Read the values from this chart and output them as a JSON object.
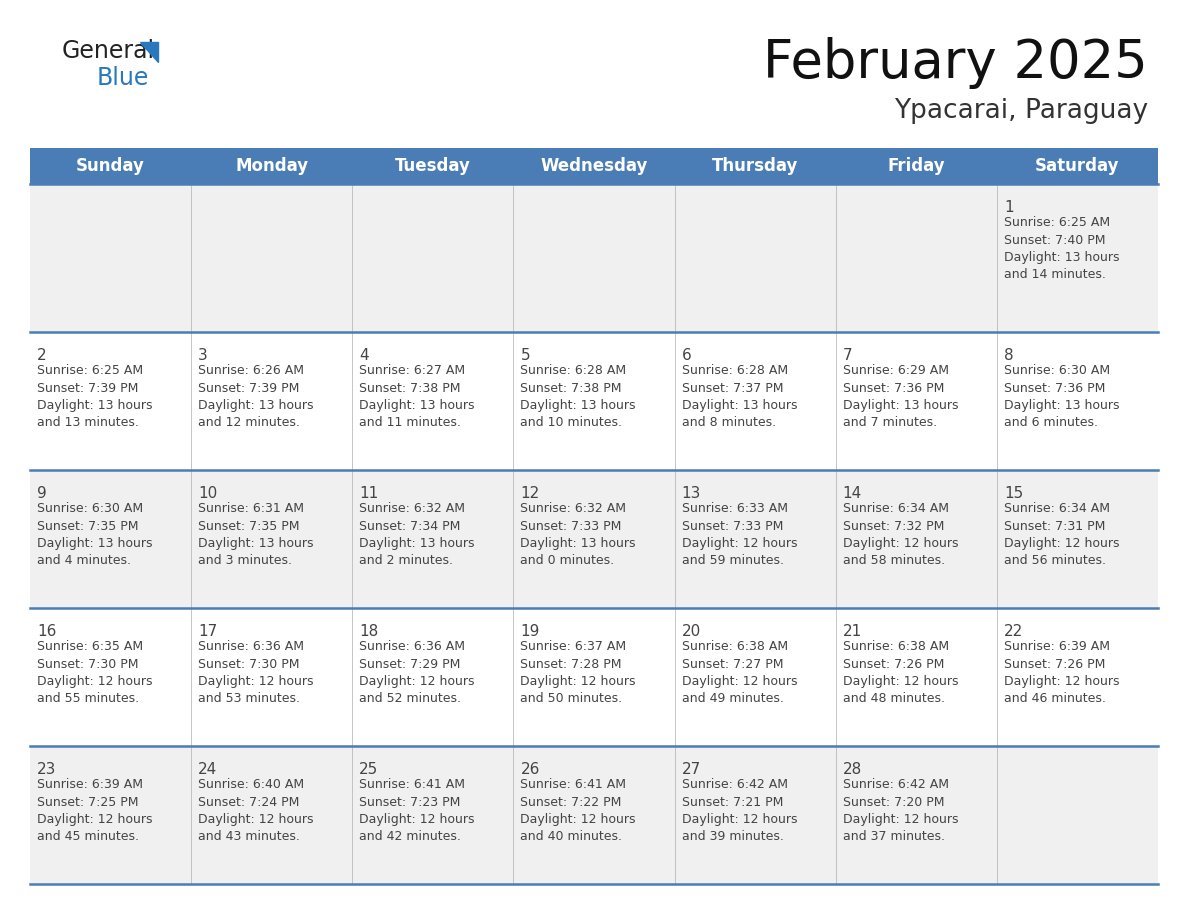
{
  "title": "February 2025",
  "subtitle": "Ypacarai, Paraguay",
  "days_of_week": [
    "Sunday",
    "Monday",
    "Tuesday",
    "Wednesday",
    "Thursday",
    "Friday",
    "Saturday"
  ],
  "header_bg": "#4A7DB5",
  "header_text": "#FFFFFF",
  "row_bg_odd": "#F0F0F0",
  "row_bg_even": "#FFFFFF",
  "separator_color": "#4A7DB5",
  "text_color": "#444444",
  "cell_data": [
    [
      null,
      null,
      null,
      null,
      null,
      null,
      {
        "day": "1",
        "sunrise": "6:25 AM",
        "sunset": "7:40 PM",
        "daylight": "13 hours\nand 14 minutes."
      }
    ],
    [
      {
        "day": "2",
        "sunrise": "6:25 AM",
        "sunset": "7:39 PM",
        "daylight": "13 hours\nand 13 minutes."
      },
      {
        "day": "3",
        "sunrise": "6:26 AM",
        "sunset": "7:39 PM",
        "daylight": "13 hours\nand 12 minutes."
      },
      {
        "day": "4",
        "sunrise": "6:27 AM",
        "sunset": "7:38 PM",
        "daylight": "13 hours\nand 11 minutes."
      },
      {
        "day": "5",
        "sunrise": "6:28 AM",
        "sunset": "7:38 PM",
        "daylight": "13 hours\nand 10 minutes."
      },
      {
        "day": "6",
        "sunrise": "6:28 AM",
        "sunset": "7:37 PM",
        "daylight": "13 hours\nand 8 minutes."
      },
      {
        "day": "7",
        "sunrise": "6:29 AM",
        "sunset": "7:36 PM",
        "daylight": "13 hours\nand 7 minutes."
      },
      {
        "day": "8",
        "sunrise": "6:30 AM",
        "sunset": "7:36 PM",
        "daylight": "13 hours\nand 6 minutes."
      }
    ],
    [
      {
        "day": "9",
        "sunrise": "6:30 AM",
        "sunset": "7:35 PM",
        "daylight": "13 hours\nand 4 minutes."
      },
      {
        "day": "10",
        "sunrise": "6:31 AM",
        "sunset": "7:35 PM",
        "daylight": "13 hours\nand 3 minutes."
      },
      {
        "day": "11",
        "sunrise": "6:32 AM",
        "sunset": "7:34 PM",
        "daylight": "13 hours\nand 2 minutes."
      },
      {
        "day": "12",
        "sunrise": "6:32 AM",
        "sunset": "7:33 PM",
        "daylight": "13 hours\nand 0 minutes."
      },
      {
        "day": "13",
        "sunrise": "6:33 AM",
        "sunset": "7:33 PM",
        "daylight": "12 hours\nand 59 minutes."
      },
      {
        "day": "14",
        "sunrise": "6:34 AM",
        "sunset": "7:32 PM",
        "daylight": "12 hours\nand 58 minutes."
      },
      {
        "day": "15",
        "sunrise": "6:34 AM",
        "sunset": "7:31 PM",
        "daylight": "12 hours\nand 56 minutes."
      }
    ],
    [
      {
        "day": "16",
        "sunrise": "6:35 AM",
        "sunset": "7:30 PM",
        "daylight": "12 hours\nand 55 minutes."
      },
      {
        "day": "17",
        "sunrise": "6:36 AM",
        "sunset": "7:30 PM",
        "daylight": "12 hours\nand 53 minutes."
      },
      {
        "day": "18",
        "sunrise": "6:36 AM",
        "sunset": "7:29 PM",
        "daylight": "12 hours\nand 52 minutes."
      },
      {
        "day": "19",
        "sunrise": "6:37 AM",
        "sunset": "7:28 PM",
        "daylight": "12 hours\nand 50 minutes."
      },
      {
        "day": "20",
        "sunrise": "6:38 AM",
        "sunset": "7:27 PM",
        "daylight": "12 hours\nand 49 minutes."
      },
      {
        "day": "21",
        "sunrise": "6:38 AM",
        "sunset": "7:26 PM",
        "daylight": "12 hours\nand 48 minutes."
      },
      {
        "day": "22",
        "sunrise": "6:39 AM",
        "sunset": "7:26 PM",
        "daylight": "12 hours\nand 46 minutes."
      }
    ],
    [
      {
        "day": "23",
        "sunrise": "6:39 AM",
        "sunset": "7:25 PM",
        "daylight": "12 hours\nand 45 minutes."
      },
      {
        "day": "24",
        "sunrise": "6:40 AM",
        "sunset": "7:24 PM",
        "daylight": "12 hours\nand 43 minutes."
      },
      {
        "day": "25",
        "sunrise": "6:41 AM",
        "sunset": "7:23 PM",
        "daylight": "12 hours\nand 42 minutes."
      },
      {
        "day": "26",
        "sunrise": "6:41 AM",
        "sunset": "7:22 PM",
        "daylight": "12 hours\nand 40 minutes."
      },
      {
        "day": "27",
        "sunrise": "6:42 AM",
        "sunset": "7:21 PM",
        "daylight": "12 hours\nand 39 minutes."
      },
      {
        "day": "28",
        "sunrise": "6:42 AM",
        "sunset": "7:20 PM",
        "daylight": "12 hours\nand 37 minutes."
      },
      null
    ]
  ],
  "logo_general_color": "#222222",
  "logo_blue_color": "#2878BE",
  "title_fontsize": 38,
  "subtitle_fontsize": 19,
  "header_fontsize": 12,
  "day_num_fontsize": 11,
  "cell_text_fontsize": 9
}
